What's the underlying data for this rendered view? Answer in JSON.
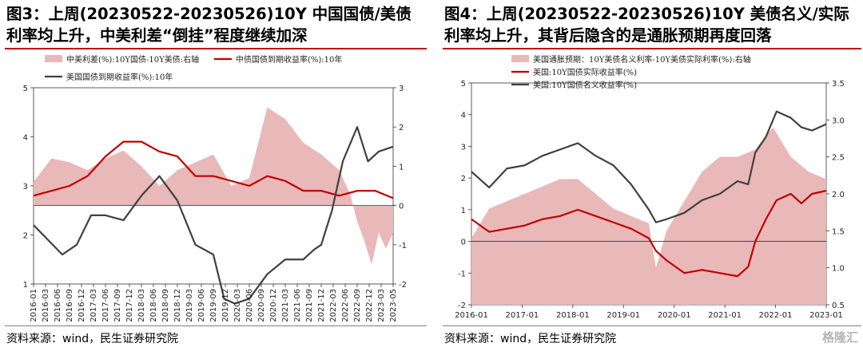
{
  "panels": [
    {
      "title": "图3：上周(20230522-20230526)10Y 中国国债/美债利率均上升，中美利差“倒挂”程度继续加深",
      "source": "资料来源：wind，民生证券研究院",
      "chart_data": {
        "type": "line",
        "x_ticks": [
          "2016-01",
          "2016-03",
          "2016-06",
          "2016-09",
          "2016-12",
          "2017-03",
          "2017-06",
          "2017-09",
          "2017-12",
          "2018-03",
          "2018-06",
          "2018-09",
          "2018-12",
          "2019-03",
          "2019-06",
          "2019-09",
          "2019-12",
          "2020-03",
          "2020-06",
          "2020-09",
          "2020-12",
          "2021-03",
          "2021-06",
          "2021-09",
          "2021-12",
          "2022-03",
          "2022-06",
          "2022-09",
          "2022-12",
          "2023-03",
          "2023-05"
        ],
        "y_left": {
          "range": [
            1,
            5
          ],
          "ticks": [
            1,
            2,
            3,
            4,
            5
          ]
        },
        "y_right": {
          "range": [
            -2,
            3
          ],
          "ticks": [
            -2,
            -1,
            0,
            1,
            2,
            3
          ]
        },
        "series": [
          {
            "name": "中美利差(%):10Y国债-10Y美债:右轴",
            "kind": "area",
            "axis": "right",
            "color": "#e9b8b8",
            "x": [
              0,
              0.05,
              0.1,
              0.15,
              0.2,
              0.25,
              0.3,
              0.35,
              0.4,
              0.45,
              0.5,
              0.55,
              0.6,
              0.65,
              0.7,
              0.75,
              0.8,
              0.85,
              0.88,
              0.9,
              0.92,
              0.94,
              0.96,
              0.98,
              1
            ],
            "values": [
              0.6,
              1.2,
              1.1,
              0.9,
              1.2,
              1.4,
              1.0,
              0.5,
              0.9,
              1.1,
              1.3,
              0.5,
              0.7,
              2.5,
              2.2,
              1.6,
              1.3,
              0.9,
              0.3,
              -0.4,
              -0.9,
              -1.5,
              -0.7,
              -1.1,
              -0.7
            ]
          },
          {
            "name": "中债国债到期收益率(%):10年",
            "kind": "line",
            "axis": "left",
            "color": "#c00000",
            "x": [
              0,
              0.05,
              0.1,
              0.15,
              0.2,
              0.25,
              0.3,
              0.35,
              0.4,
              0.45,
              0.5,
              0.55,
              0.6,
              0.65,
              0.7,
              0.75,
              0.8,
              0.85,
              0.9,
              0.95,
              1
            ],
            "values": [
              2.8,
              2.9,
              3.0,
              3.2,
              3.6,
              3.9,
              3.9,
              3.7,
              3.6,
              3.2,
              3.2,
              3.1,
              3.0,
              3.2,
              3.1,
              2.9,
              2.9,
              2.8,
              2.9,
              2.9,
              2.75
            ]
          },
          {
            "name": "美国国债到期收益率(%):10年",
            "kind": "line",
            "axis": "left",
            "color": "#404040",
            "x": [
              0,
              0.04,
              0.08,
              0.12,
              0.16,
              0.2,
              0.25,
              0.3,
              0.35,
              0.4,
              0.45,
              0.5,
              0.53,
              0.56,
              0.6,
              0.65,
              0.7,
              0.75,
              0.78,
              0.8,
              0.83,
              0.86,
              0.9,
              0.93,
              0.96,
              1
            ],
            "values": [
              2.2,
              1.9,
              1.6,
              1.8,
              2.4,
              2.4,
              2.3,
              2.8,
              3.2,
              2.7,
              1.8,
              1.6,
              0.7,
              0.6,
              0.7,
              1.2,
              1.5,
              1.5,
              1.7,
              1.8,
              2.5,
              3.5,
              4.2,
              3.5,
              3.7,
              3.8
            ]
          }
        ]
      }
    },
    {
      "title": "图4：上周(20230522-20230526)10Y 美债名义/实际利率均上升，其背后隐含的是通胀预期再度回落",
      "source": "资料来源：wind，民生证券研究院",
      "chart_data": {
        "type": "line",
        "x_ticks": [
          "2016-01",
          "2017-01",
          "2018-01",
          "2019-01",
          "2020-01",
          "2021-01",
          "2022-01",
          "2023-01"
        ],
        "y_left": {
          "range": [
            -2,
            5
          ],
          "ticks": [
            -2,
            -1,
            0,
            1,
            2,
            3,
            4,
            5
          ]
        },
        "y_right": {
          "range": [
            0.5,
            3.5
          ],
          "ticks": [
            0.5,
            1.0,
            1.5,
            2.0,
            2.5,
            3.0,
            3.5
          ]
        },
        "series": [
          {
            "name": "美国通胀预期：10Y美债名义利率-10Y美债实际利率(%):右轴",
            "kind": "area",
            "axis": "right",
            "color": "#e9b8b8",
            "x": [
              0,
              0.05,
              0.1,
              0.15,
              0.2,
              0.25,
              0.3,
              0.35,
              0.4,
              0.45,
              0.5,
              0.52,
              0.55,
              0.6,
              0.65,
              0.7,
              0.75,
              0.8,
              0.85,
              0.9,
              0.95,
              1
            ],
            "values": [
              1.4,
              1.8,
              1.9,
              2.0,
              2.1,
              2.2,
              2.2,
              2.0,
              1.8,
              1.7,
              1.6,
              1.0,
              1.5,
              1.9,
              2.3,
              2.5,
              2.5,
              2.6,
              2.9,
              2.5,
              2.3,
              2.2
            ]
          },
          {
            "name": "美国:10Y国债实际收益率(%)",
            "kind": "line",
            "axis": "left",
            "color": "#c00000",
            "x": [
              0,
              0.05,
              0.1,
              0.15,
              0.2,
              0.25,
              0.3,
              0.35,
              0.4,
              0.45,
              0.5,
              0.52,
              0.55,
              0.6,
              0.65,
              0.7,
              0.75,
              0.78,
              0.8,
              0.83,
              0.86,
              0.9,
              0.93,
              0.96,
              1
            ],
            "values": [
              0.7,
              0.3,
              0.4,
              0.5,
              0.7,
              0.8,
              1.0,
              0.8,
              0.6,
              0.4,
              0.1,
              -0.3,
              -0.6,
              -1.0,
              -0.9,
              -1.0,
              -1.1,
              -0.8,
              0.0,
              0.7,
              1.3,
              1.5,
              1.2,
              1.5,
              1.6
            ]
          },
          {
            "name": "美国:10Y国债名义收益率(%)",
            "kind": "line",
            "axis": "left",
            "color": "#404040",
            "x": [
              0,
              0.05,
              0.1,
              0.15,
              0.2,
              0.25,
              0.3,
              0.35,
              0.4,
              0.45,
              0.5,
              0.52,
              0.55,
              0.6,
              0.65,
              0.7,
              0.75,
              0.78,
              0.8,
              0.83,
              0.86,
              0.9,
              0.93,
              0.96,
              1
            ],
            "values": [
              2.2,
              1.7,
              2.3,
              2.4,
              2.7,
              2.9,
              3.1,
              2.7,
              2.4,
              1.8,
              1.0,
              0.6,
              0.7,
              0.9,
              1.3,
              1.5,
              1.9,
              1.8,
              2.8,
              3.3,
              4.1,
              3.9,
              3.6,
              3.5,
              3.7
            ]
          }
        ]
      }
    }
  ],
  "watermark": "格隆汇"
}
